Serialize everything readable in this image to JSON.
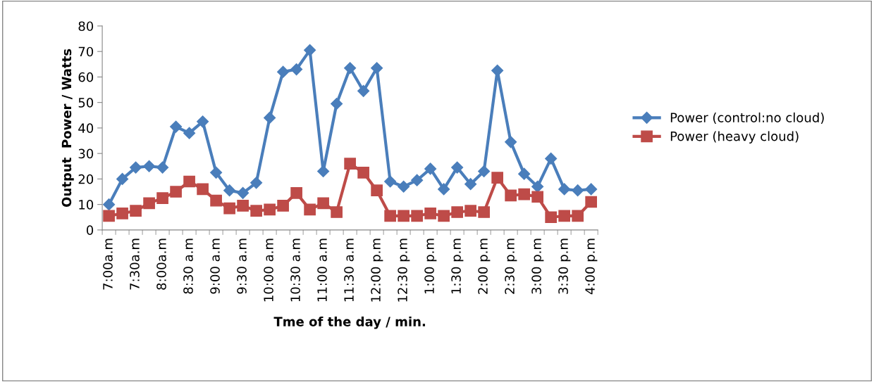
{
  "chart_data": {
    "type": "line",
    "xlabel": "Tme of the day / min.",
    "ylabel": "Output  Power / Watts",
    "categories": [
      "7:00a.m",
      null,
      "7:30a.m",
      null,
      "8:00a.m",
      null,
      "8:30 a.m",
      null,
      "9:00 a.m",
      null,
      "9:30 a.m",
      null,
      "10:00 a.m",
      null,
      "10:30 a.m",
      null,
      "11:00 a.m",
      null,
      "11:30 a.m",
      null,
      "12:00 p.m",
      null,
      "12:30 p.m",
      null,
      "1:00 p.m",
      null,
      "1:30 p.m",
      null,
      "2:00 p.m",
      null,
      "2:30 p.m",
      null,
      "3:00 p.m",
      null,
      "3:30 p.m",
      null,
      "4:00 p.m"
    ],
    "series": [
      {
        "name": "Power (control:no cloud)",
        "color": "#4a7ebb",
        "marker": "diamond",
        "values": [
          10,
          20,
          24.5,
          25,
          24.5,
          40.5,
          38,
          42.5,
          22.5,
          15.5,
          14.5,
          18.5,
          44,
          62,
          63,
          70.5,
          23,
          49.5,
          63.5,
          54.5,
          63.5,
          19,
          17,
          19.5,
          24,
          16,
          24.5,
          18,
          23,
          62.5,
          34.5,
          22,
          17,
          28,
          16,
          15.5,
          16
        ]
      },
      {
        "name": "Power (heavy cloud)",
        "color": "#be4b48",
        "marker": "square",
        "values": [
          5.5,
          6.5,
          7.5,
          10.5,
          12.5,
          15,
          19,
          16,
          11.5,
          8.5,
          9.5,
          7.5,
          8,
          9.5,
          14.5,
          8,
          10.5,
          7,
          26,
          22.5,
          15.5,
          5.5,
          5.5,
          5.5,
          6.5,
          5.5,
          7,
          7.5,
          7,
          20.5,
          13.5,
          14,
          13,
          5,
          5.5,
          5.5,
          11
        ]
      }
    ],
    "ylim": [
      0,
      80
    ],
    "yticks": [
      0,
      10,
      20,
      30,
      40,
      50,
      60,
      70,
      80
    ],
    "grid": false,
    "legend": "right"
  }
}
